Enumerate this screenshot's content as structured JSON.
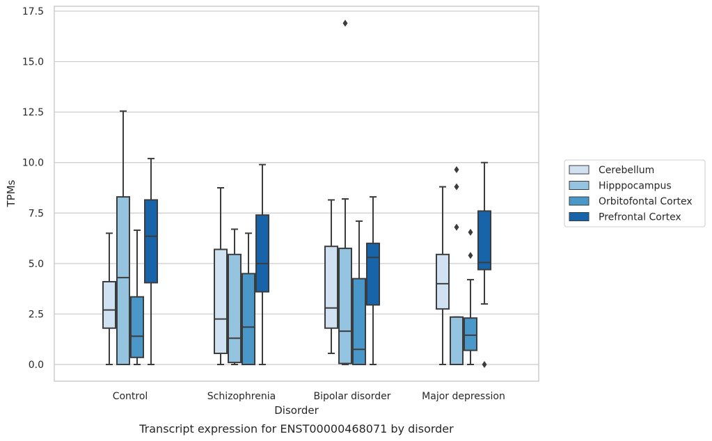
{
  "chart_data": {
    "type": "box",
    "caption": "Transcript expression for ENST00000468071 by disorder",
    "xlabel": "Disorder",
    "ylabel": "TPMs",
    "ylim": [
      -0.8,
      17.6
    ],
    "yticks": [
      "0.0",
      "2.5",
      "5.0",
      "7.5",
      "10.0",
      "12.5",
      "15.0",
      "17.5"
    ],
    "ytick_values": [
      0,
      2.5,
      5,
      7.5,
      10,
      12.5,
      15,
      17.5
    ],
    "grid": "horizontal",
    "legend_position": "right",
    "categories": [
      "Control",
      "Schizophrenia",
      "Bipolar disorder",
      "Major depression"
    ],
    "series": [
      {
        "name": "Cerebellum",
        "color": "#d0e1f2",
        "boxes": [
          {
            "whisker_low": 0,
            "q1": 1.8,
            "median": 2.7,
            "q3": 4.1,
            "whisker_high": 6.5,
            "outliers": []
          },
          {
            "whisker_low": 0,
            "q1": 0.55,
            "median": 2.25,
            "q3": 5.7,
            "whisker_high": 8.75,
            "outliers": []
          },
          {
            "whisker_low": 0.55,
            "q1": 1.8,
            "median": 2.8,
            "q3": 5.85,
            "whisker_high": 8.15,
            "outliers": []
          },
          {
            "whisker_low": 0,
            "q1": 2.75,
            "median": 4.0,
            "q3": 5.45,
            "whisker_high": 8.8,
            "outliers": []
          }
        ]
      },
      {
        "name": "Hipppocampus",
        "color": "#94c4df",
        "boxes": [
          {
            "whisker_low": 0,
            "q1": 0,
            "median": 4.3,
            "q3": 8.3,
            "whisker_high": 12.55,
            "outliers": []
          },
          {
            "whisker_low": 0,
            "q1": 0.1,
            "median": 1.3,
            "q3": 5.45,
            "whisker_high": 6.7,
            "outliers": []
          },
          {
            "whisker_low": 0,
            "q1": 0.05,
            "median": 1.65,
            "q3": 5.75,
            "whisker_high": 8.2,
            "outliers": [
              16.9
            ]
          },
          {
            "whisker_low": 0,
            "q1": 0,
            "median": 0,
            "q3": 2.35,
            "whisker_high": 2.35,
            "outliers": [
              6.8,
              8.8,
              9.65
            ]
          }
        ]
      },
      {
        "name": "Orbitofontal Cortex",
        "color": "#4a98c9",
        "boxes": [
          {
            "whisker_low": 0,
            "q1": 0.35,
            "median": 1.4,
            "q3": 3.35,
            "whisker_high": 6.65,
            "outliers": []
          },
          {
            "whisker_low": 0,
            "q1": 0,
            "median": 1.85,
            "q3": 4.5,
            "whisker_high": 6.5,
            "outliers": []
          },
          {
            "whisker_low": 0,
            "q1": 0,
            "median": 0.75,
            "q3": 4.25,
            "whisker_high": 7.1,
            "outliers": []
          },
          {
            "whisker_low": 0,
            "q1": 0.7,
            "median": 1.45,
            "q3": 2.3,
            "whisker_high": 4.2,
            "outliers": [
              5.4,
              6.55
            ]
          }
        ]
      },
      {
        "name": "Prefrontal Cortex",
        "color": "#1764ab",
        "boxes": [
          {
            "whisker_low": 0,
            "q1": 4.05,
            "median": 6.35,
            "q3": 8.15,
            "whisker_high": 10.2,
            "outliers": []
          },
          {
            "whisker_low": 0,
            "q1": 3.6,
            "median": 5.0,
            "q3": 7.4,
            "whisker_high": 9.9,
            "outliers": []
          },
          {
            "whisker_low": 0,
            "q1": 2.95,
            "median": 5.3,
            "q3": 6.0,
            "whisker_high": 8.3,
            "outliers": []
          },
          {
            "whisker_low": 3.0,
            "q1": 4.7,
            "median": 5.05,
            "q3": 7.6,
            "whisker_high": 10.0,
            "outliers": [
              0
            ]
          }
        ]
      }
    ]
  }
}
